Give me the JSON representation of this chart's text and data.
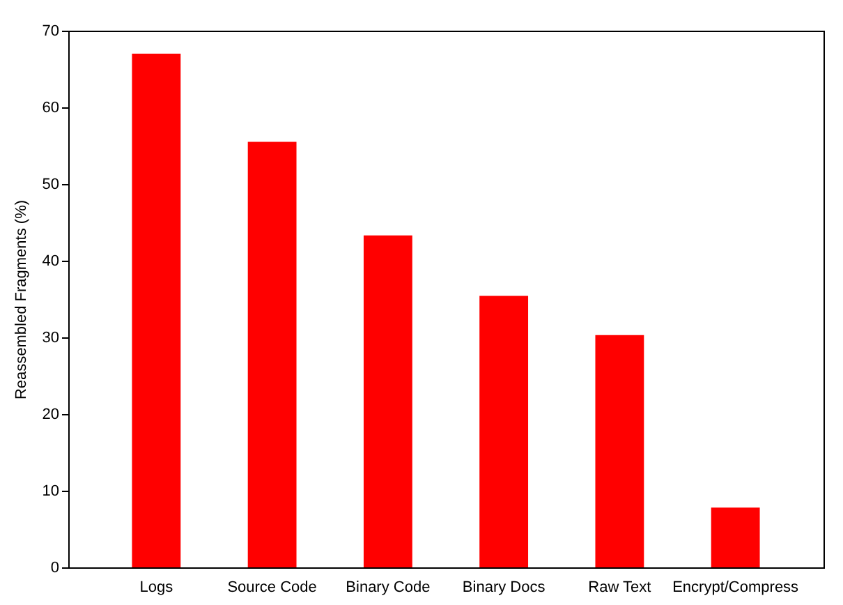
{
  "chart_data": {
    "type": "bar",
    "ylabel": "Reassembled Fragments (%)",
    "categories": [
      "Logs",
      "Source Code",
      "Binary Code",
      "Binary Docs",
      "Raw Text",
      "Encrypt/Compress"
    ],
    "values": [
      67.0,
      55.5,
      43.3,
      35.4,
      30.3,
      7.8
    ],
    "color": "#ff0000",
    "ylim": [
      0,
      70
    ],
    "yticks": [
      0,
      10,
      20,
      30,
      40,
      50,
      60,
      70
    ],
    "grid": false
  }
}
